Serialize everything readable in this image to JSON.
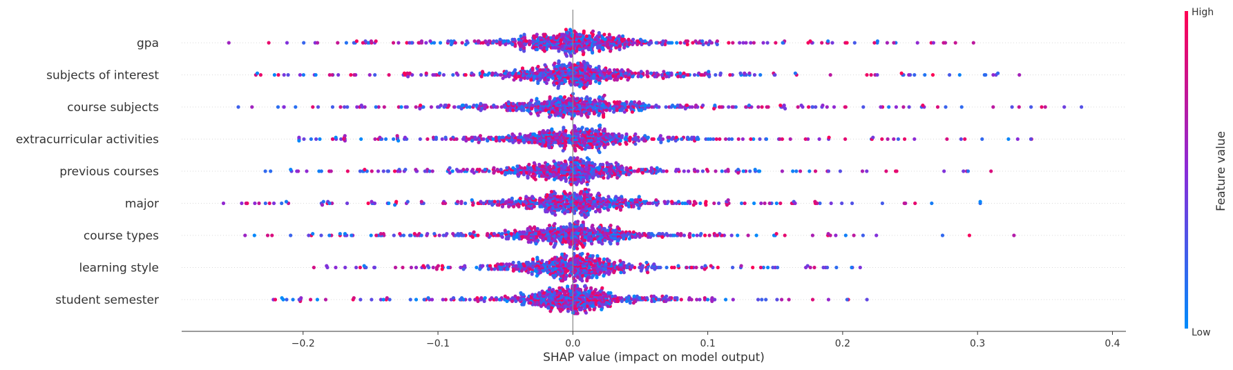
{
  "chart_data": {
    "type": "scatter",
    "subtype": "shap-beeswarm",
    "title": "",
    "xlabel": "SHAP value (impact on model output)",
    "ylabel": "",
    "xlim": [
      -0.29,
      0.41
    ],
    "xticks": [
      -0.2,
      -0.1,
      0.0,
      0.1,
      0.2,
      0.3,
      0.4
    ],
    "xtick_labels": [
      "−0.2",
      "−0.1",
      "0.0",
      "0.1",
      "0.2",
      "0.3",
      "0.4"
    ],
    "zero_line": 0.0,
    "grid": false,
    "features": [
      {
        "name": "gpa",
        "min": -0.255,
        "max": 0.297,
        "spread": 0.052
      },
      {
        "name": "subjects of interest",
        "min": -0.235,
        "max": 0.331,
        "spread": 0.052
      },
      {
        "name": "course subjects",
        "min": -0.248,
        "max": 0.377,
        "spread": 0.06
      },
      {
        "name": "extracurricular activities",
        "min": -0.203,
        "max": 0.34,
        "spread": 0.058
      },
      {
        "name": "previous courses",
        "min": -0.228,
        "max": 0.31,
        "spread": 0.055
      },
      {
        "name": "major",
        "min": -0.259,
        "max": 0.302,
        "spread": 0.055
      },
      {
        "name": "course types",
        "min": -0.243,
        "max": 0.327,
        "spread": 0.055
      },
      {
        "name": "learning style",
        "min": -0.192,
        "max": 0.213,
        "spread": 0.045
      },
      {
        "name": "student semester",
        "min": -0.222,
        "max": 0.218,
        "spread": 0.042
      }
    ],
    "colorbar": {
      "title": "Feature value",
      "high_label": "High",
      "low_label": "Low",
      "high_color": "#ff0052",
      "low_color": "#008bfb"
    },
    "legend_placement": "right"
  }
}
